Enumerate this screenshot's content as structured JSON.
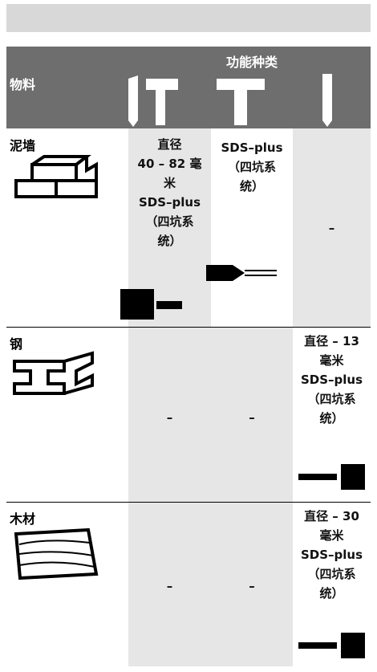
{
  "header": {
    "group_title": "功能种类",
    "material_label": "物料"
  },
  "rows": [
    {
      "material": "泥墙",
      "cells": [
        [
          "直径",
          "40 – 82 毫",
          "米",
          "SDS–plus",
          "（四坑系",
          "统）"
        ],
        [
          "SDS–plus",
          "（四坑系",
          "统）"
        ],
        [
          "–"
        ]
      ]
    },
    {
      "material": "钢",
      "cells": [
        [
          "–"
        ],
        [
          "–"
        ],
        [
          "直径 – 13",
          "毫米",
          "SDS–plus",
          "（四坑系",
          "统）"
        ]
      ]
    },
    {
      "material": "木材",
      "cells": [
        [
          "–"
        ],
        [
          "–"
        ],
        [
          "直径 – 30",
          "毫米",
          "SDS–plus",
          "（四坑系",
          "统）"
        ]
      ]
    }
  ]
}
